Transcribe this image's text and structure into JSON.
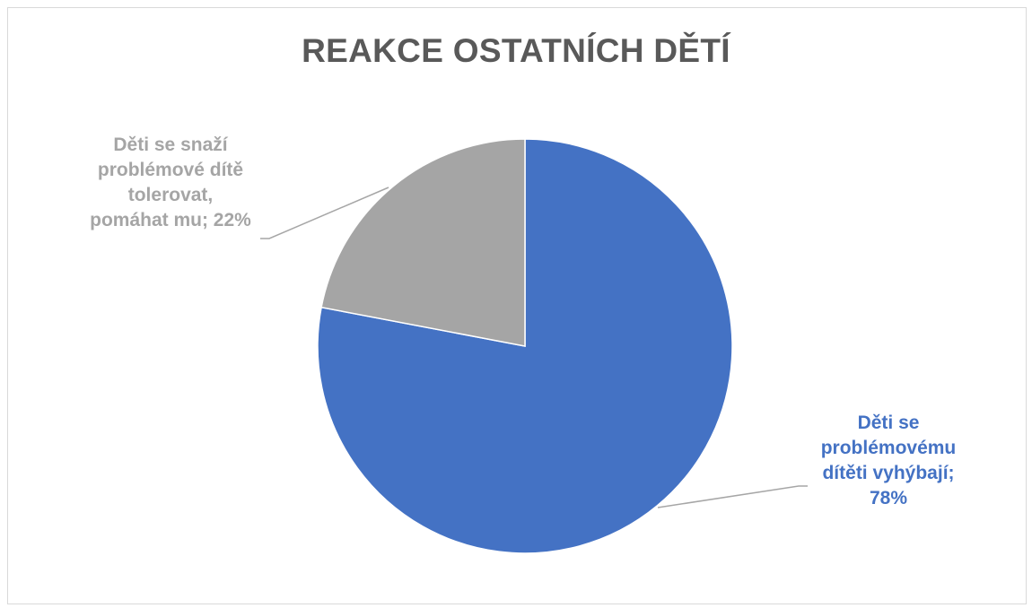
{
  "chart_data": {
    "type": "pie",
    "title": "REAKCE OSTATNÍCH DĚTÍ",
    "slices": [
      {
        "name": "Děti se problémovému dítěti vyhýbají",
        "value": 78,
        "label_lines": [
          "Děti se",
          "problémovému",
          "dítěti vyhýbají;",
          "78%"
        ],
        "color": "#4472c4"
      },
      {
        "name": "Děti se snaží problémové dítě tolerovat, pomáhat mu",
        "value": 22,
        "label_lines": [
          "Děti se snaží",
          "problémové dítě",
          "tolerovat,",
          "pomáhat mu; 22%"
        ],
        "color": "#a5a5a5"
      }
    ],
    "start_angle_deg": 0,
    "direction": "clockwise",
    "legend": "none",
    "data_labels": "outside with leader lines"
  }
}
